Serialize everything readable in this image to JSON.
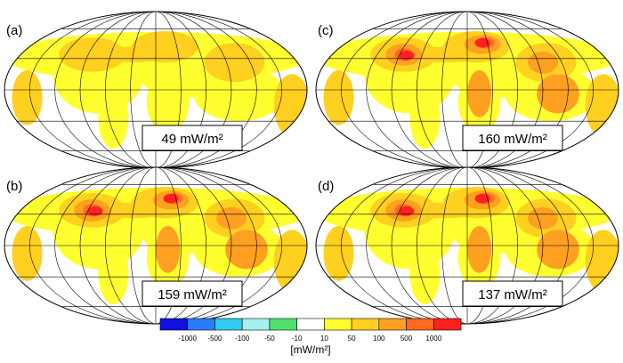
{
  "panels": [
    {
      "label": "(a)",
      "annotation": "49 mW/m²"
    },
    {
      "label": "(b)",
      "annotation": "159 mW/m²"
    },
    {
      "label": "(c)",
      "annotation": "160 mW/m²"
    },
    {
      "label": "(d)",
      "annotation": "137 mW/m²"
    }
  ],
  "colorbar": {
    "ticks": [
      -1000,
      -500,
      -100,
      -50,
      -10,
      10,
      50,
      100,
      500,
      1000
    ],
    "colors": [
      "#1010e0",
      "#2a7cff",
      "#30ccf0",
      "#a8f0f0",
      "#50e070",
      "#ffffff",
      "#ffff30",
      "#ffd020",
      "#ffa020",
      "#ff6a20",
      "#ff2020"
    ],
    "label": "[mW/m²]"
  }
}
